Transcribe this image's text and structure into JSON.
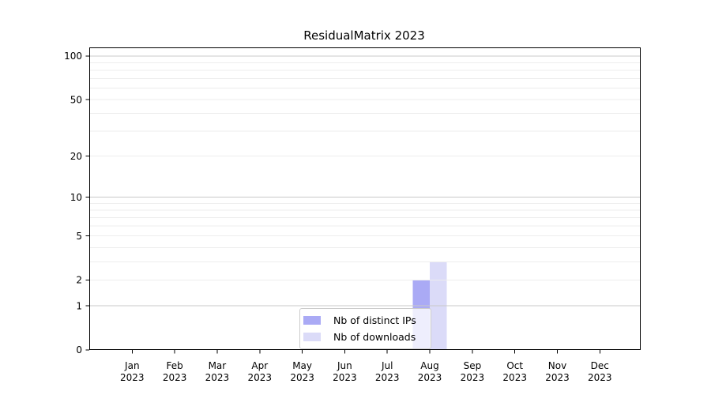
{
  "chart_data": {
    "type": "bar",
    "title": "ResidualMatrix 2023",
    "categories": [
      "Jan 2023",
      "Feb 2023",
      "Mar 2023",
      "Apr 2023",
      "May 2023",
      "Jun 2023",
      "Jul 2023",
      "Aug 2023",
      "Sep 2023",
      "Oct 2023",
      "Nov 2023",
      "Dec 2023"
    ],
    "series": [
      {
        "name": "Nb of distinct IPs",
        "color": "#aaaaf5",
        "values": [
          0,
          0,
          0,
          0,
          0,
          0,
          0,
          2,
          0,
          0,
          0,
          0
        ]
      },
      {
        "name": "Nb of downloads",
        "color": "#dbdbf8",
        "values": [
          0,
          0,
          0,
          0,
          0,
          0,
          0,
          3,
          0,
          0,
          0,
          0
        ]
      }
    ],
    "xlabel": "",
    "ylabel": "",
    "y_ticks": [
      0,
      1,
      2,
      5,
      10,
      20,
      50,
      100
    ],
    "y_scale": "log1p",
    "ylim": [
      0,
      113
    ],
    "grid": true,
    "grid_major_values": [
      1,
      10,
      100
    ],
    "grid_minor_values": [
      2,
      3,
      4,
      5,
      6,
      7,
      8,
      9,
      20,
      30,
      40,
      50,
      60,
      70,
      80,
      90
    ],
    "legend": {
      "position": "inside-bottom-center"
    },
    "colors": {
      "background": "#ffffff",
      "grid_major": "#c9c9c9",
      "grid_minor": "#ededed",
      "axis": "#000000",
      "text": "#000000",
      "legend_border": "#cccccc",
      "legend_background": "rgba(255,255,255,0.8)"
    }
  }
}
